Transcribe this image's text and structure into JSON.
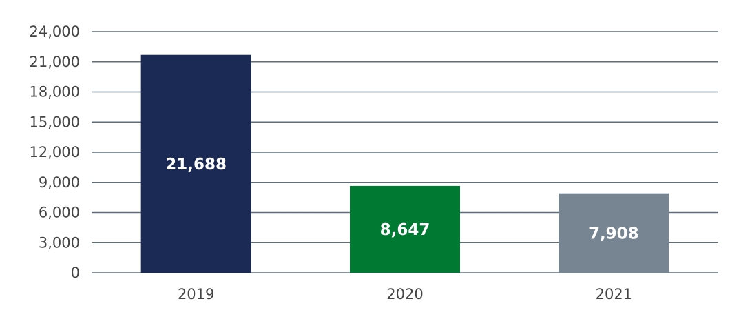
{
  "chart_data": {
    "type": "bar",
    "categories": [
      "2019",
      "2020",
      "2021"
    ],
    "values": [
      21688,
      8647,
      7908
    ],
    "data_labels": [
      "21,688",
      "8,647",
      "7,908"
    ],
    "bar_colors": [
      "#1b2a54",
      "#007a33",
      "#768591"
    ],
    "ylim": [
      0,
      24000
    ],
    "yticks": [
      0,
      3000,
      6000,
      9000,
      12000,
      15000,
      18000,
      21000,
      24000
    ],
    "ytick_labels": [
      "0",
      "3,000",
      "6,000",
      "9,000",
      "12,000",
      "15,000",
      "18,000",
      "21,000",
      "24,000"
    ],
    "grid": true,
    "legend": "none",
    "title": "",
    "xlabel": "",
    "ylabel": ""
  }
}
